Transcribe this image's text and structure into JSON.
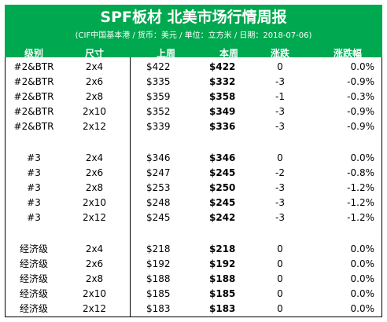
{
  "header": {
    "title": "SPF板材 北美市场行情周报",
    "subtitle": "(CIF中国基本港 / 货币：美元 / 单位：立方米 / 日期：2018-07-06)",
    "bg_color": "#00a84f",
    "columns": [
      "级别",
      "尺寸",
      "上周",
      "本周",
      "涨跌",
      "涨跌幅"
    ]
  },
  "groups": [
    {
      "rows": [
        {
          "grade": "#2&BTR",
          "size": "2x4",
          "last": "$422",
          "this": "$422",
          "chg": "0",
          "pct": "0.0%"
        },
        {
          "grade": "#2&BTR",
          "size": "2x6",
          "last": "$335",
          "this": "$332",
          "chg": "-3",
          "pct": "-0.9%"
        },
        {
          "grade": "#2&BTR",
          "size": "2x8",
          "last": "$359",
          "this": "$358",
          "chg": "-1",
          "pct": "-0.3%"
        },
        {
          "grade": "#2&BTR",
          "size": "2x10",
          "last": "$352",
          "this": "$349",
          "chg": "-3",
          "pct": "-0.9%"
        },
        {
          "grade": "#2&BTR",
          "size": "2x12",
          "last": "$339",
          "this": "$336",
          "chg": "-3",
          "pct": "-0.9%"
        }
      ]
    },
    {
      "rows": [
        {
          "grade": "#3",
          "size": "2x4",
          "last": "$346",
          "this": "$346",
          "chg": "0",
          "pct": "0.0%"
        },
        {
          "grade": "#3",
          "size": "2x6",
          "last": "$247",
          "this": "$245",
          "chg": "-2",
          "pct": "-0.8%"
        },
        {
          "grade": "#3",
          "size": "2x8",
          "last": "$253",
          "this": "$250",
          "chg": "-3",
          "pct": "-1.2%"
        },
        {
          "grade": "#3",
          "size": "2x10",
          "last": "$248",
          "this": "$245",
          "chg": "-3",
          "pct": "-1.2%"
        },
        {
          "grade": "#3",
          "size": "2x12",
          "last": "$245",
          "this": "$242",
          "chg": "-3",
          "pct": "-1.2%"
        }
      ]
    },
    {
      "rows": [
        {
          "grade": "经济级",
          "size": "2x4",
          "last": "$218",
          "this": "$218",
          "chg": "0",
          "pct": "0.0%"
        },
        {
          "grade": "经济级",
          "size": "2x6",
          "last": "$192",
          "this": "$192",
          "chg": "0",
          "pct": "0.0%"
        },
        {
          "grade": "经济级",
          "size": "2x8",
          "last": "$188",
          "this": "$188",
          "chg": "0",
          "pct": "0.0%"
        },
        {
          "grade": "经济级",
          "size": "2x10",
          "last": "$185",
          "this": "$185",
          "chg": "0",
          "pct": "0.0%"
        },
        {
          "grade": "经济级",
          "size": "2x12",
          "last": "$183",
          "this": "$183",
          "chg": "0",
          "pct": "0.0%"
        }
      ]
    }
  ]
}
